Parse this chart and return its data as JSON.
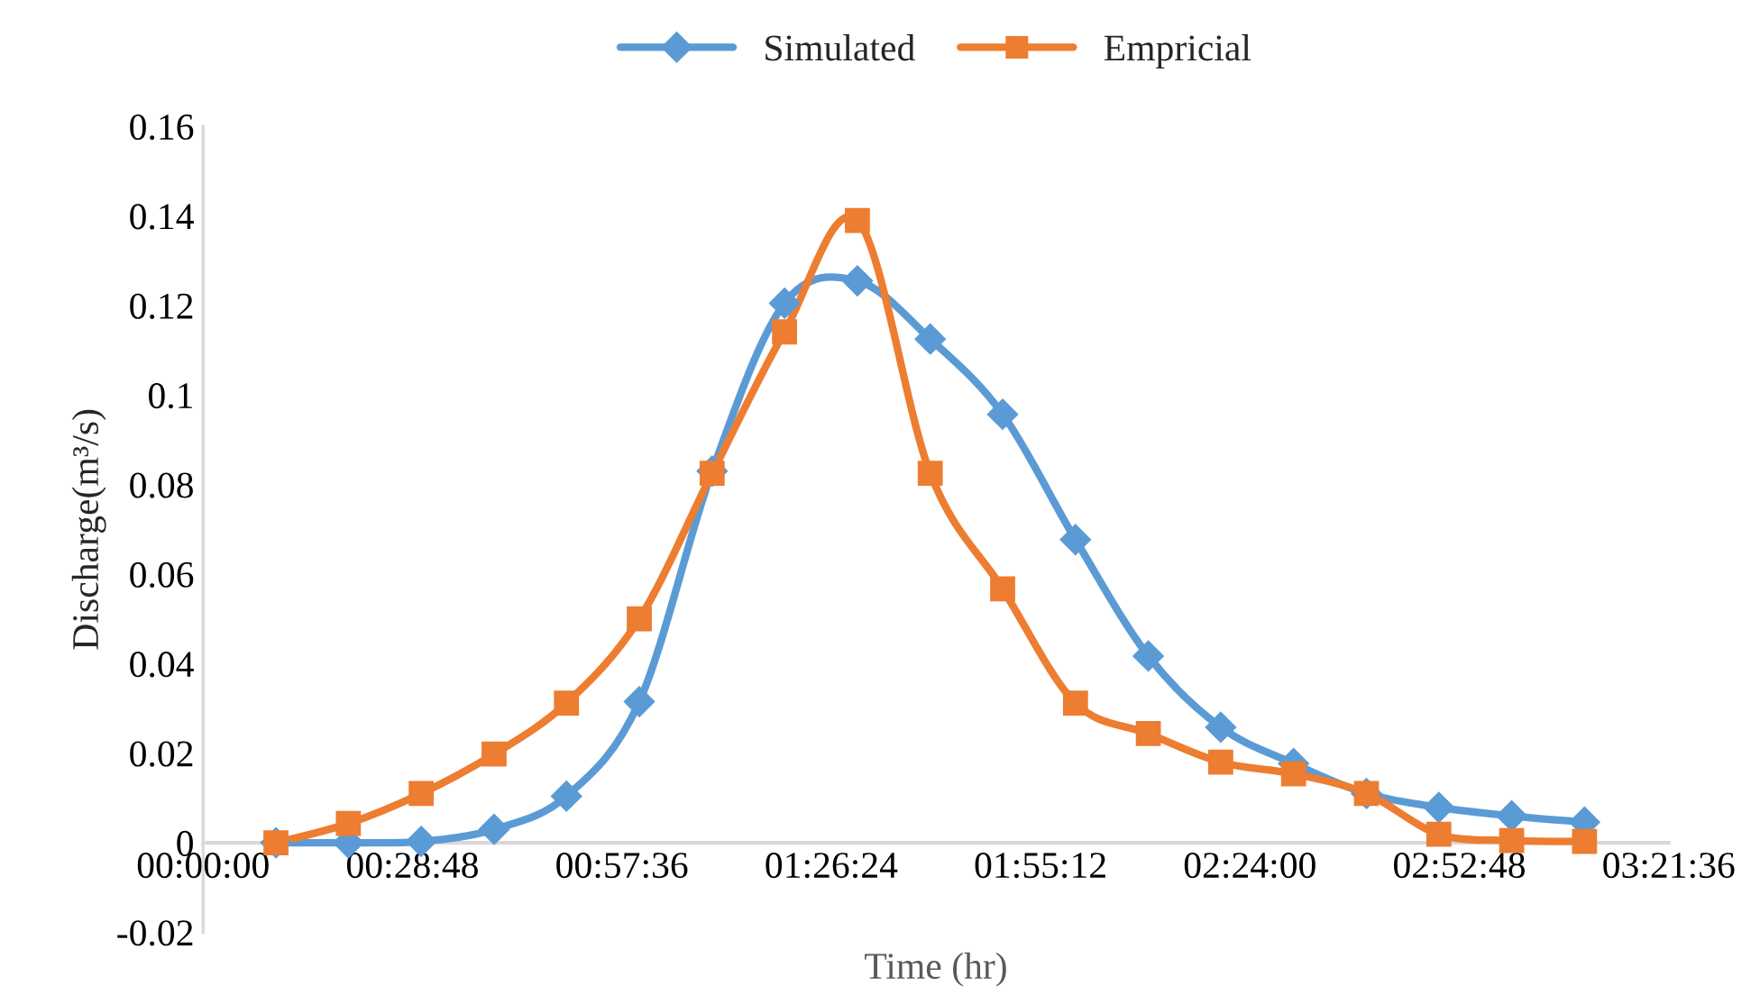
{
  "chart_data": {
    "type": "line",
    "xlabel": "Time (hr)",
    "ylabel": "Discharge(m³/s)",
    "x": [
      0.167,
      0.333,
      0.5,
      0.667,
      0.833,
      1,
      1.167,
      1.333,
      1.5,
      1.667,
      1.833,
      2,
      2.167,
      2.333,
      2.5,
      2.667,
      2.833,
      3,
      3.167
    ],
    "series": [
      {
        "name": "Simulated",
        "color": "#5b9bd5",
        "marker": "diamond",
        "values": [
          0,
          0,
          0.0003,
          0.003,
          0.0104,
          0.0315,
          0.083,
          0.1205,
          0.1255,
          0.1125,
          0.0957,
          0.0677,
          0.0417,
          0.0258,
          0.0177,
          0.011,
          0.0079,
          0.006,
          0.0046
        ]
      },
      {
        "name": "Empricial",
        "color": "#ed7d31",
        "marker": "square",
        "values": [
          0,
          0.0043,
          0.011,
          0.0198,
          0.0312,
          0.05,
          0.0825,
          0.1141,
          0.139,
          0.0825,
          0.0567,
          0.0312,
          0.0244,
          0.018,
          0.0154,
          0.011,
          0.0019,
          0.0005,
          0.0003
        ]
      }
    ],
    "xlim": [
      0,
      3.36
    ],
    "xticks": [
      {
        "value": 0,
        "label": "00:00:00"
      },
      {
        "value": 0.48,
        "label": "00:28:48"
      },
      {
        "value": 0.96,
        "label": "00:57:36"
      },
      {
        "value": 1.44,
        "label": "01:26:24"
      },
      {
        "value": 1.92,
        "label": "01:55:12"
      },
      {
        "value": 2.4,
        "label": "02:24:00"
      },
      {
        "value": 2.88,
        "label": "02:52:48"
      },
      {
        "value": 3.36,
        "label": "03:21:36"
      }
    ],
    "ylim": [
      -0.02,
      0.16
    ],
    "yticks": [
      {
        "value": -0.02,
        "label": "-0.02"
      },
      0,
      0.02,
      0.04,
      0.06,
      0.08,
      0.1,
      0.12,
      0.14,
      0.16
    ],
    "grid": false,
    "legend": "top",
    "line_style": "solid"
  }
}
